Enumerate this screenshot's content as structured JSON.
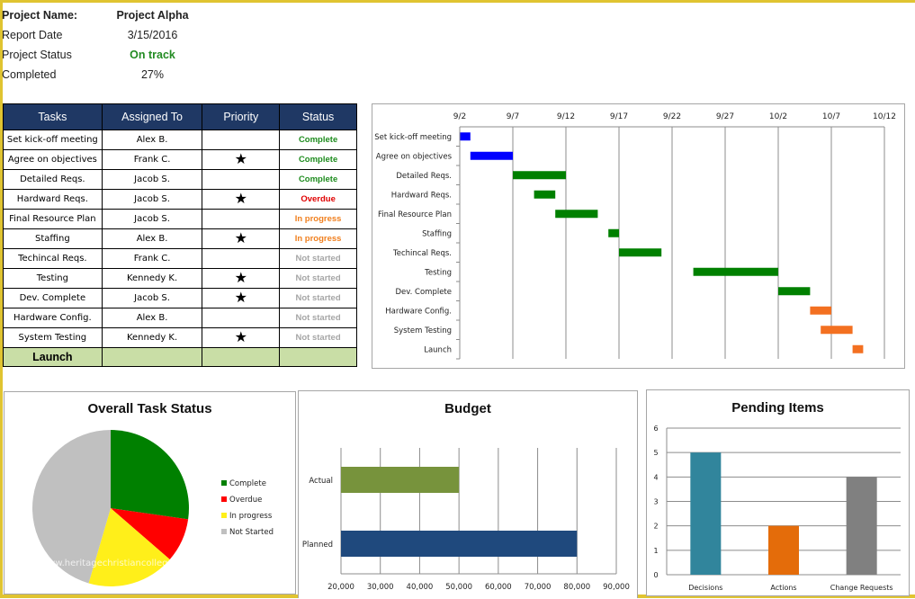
{
  "project": {
    "name_label": "Project Name:",
    "name": "Project Alpha",
    "date_label": "Report Date",
    "date": "3/15/2016",
    "status_label": "Project Status",
    "status": "On track",
    "status_color": "#228b22",
    "completed_label": "Completed",
    "completed": "27%"
  },
  "table": {
    "headers": [
      "Tasks",
      "Assigned To",
      "Priority",
      "Status"
    ],
    "rows": [
      {
        "task": "Set kick-off meeting",
        "assigned": "Alex B.",
        "priority": false,
        "status": "Complete"
      },
      {
        "task": "Agree on objectives",
        "assigned": "Frank C.",
        "priority": true,
        "status": "Complete"
      },
      {
        "task": "Detailed Reqs.",
        "assigned": "Jacob S.",
        "priority": false,
        "status": "Complete"
      },
      {
        "task": "Hardward Reqs.",
        "assigned": "Jacob S.",
        "priority": true,
        "status": "Overdue"
      },
      {
        "task": "Final Resource Plan",
        "assigned": "Jacob S.",
        "priority": false,
        "status": "In progress"
      },
      {
        "task": "Staffing",
        "assigned": "Alex B.",
        "priority": true,
        "status": "In progress"
      },
      {
        "task": "Techincal Reqs.",
        "assigned": "Frank C.",
        "priority": false,
        "status": "Not started"
      },
      {
        "task": "Testing",
        "assigned": "Kennedy K.",
        "priority": true,
        "status": "Not started"
      },
      {
        "task": "Dev. Complete",
        "assigned": "Jacob S.",
        "priority": true,
        "status": "Not started"
      },
      {
        "task": "Hardware Config.",
        "assigned": "Alex B.",
        "priority": false,
        "status": "Not started"
      },
      {
        "task": "System Testing",
        "assigned": "Kennedy K.",
        "priority": true,
        "status": "Not started"
      }
    ],
    "launch_label": "Launch",
    "priority_icon": "star-icon",
    "status_colors": {
      "Complete": "#1e8c1e",
      "Overdue": "#e00000",
      "In progress": "#f08020",
      "Not started": "#a6a6a6"
    }
  },
  "chart_data": [
    {
      "type": "gantt",
      "x_ticks": [
        "9/2",
        "9/7",
        "9/12",
        "9/17",
        "9/22",
        "9/27",
        "10/2",
        "10/7",
        "10/12"
      ],
      "tasks": [
        {
          "label": "Set kick-off meeting",
          "start": "9/2",
          "end": "9/3",
          "color": "#0000ff"
        },
        {
          "label": "Agree on objectives",
          "start": "9/3",
          "end": "9/7",
          "color": "#0000ff"
        },
        {
          "label": "Detailed Reqs.",
          "start": "9/7",
          "end": "9/12",
          "color": "#008000"
        },
        {
          "label": "Hardward Reqs.",
          "start": "9/9",
          "end": "9/11",
          "color": "#008000"
        },
        {
          "label": "Final Resource Plan",
          "start": "9/11",
          "end": "9/15",
          "color": "#008000"
        },
        {
          "label": "Staffing",
          "start": "9/16",
          "end": "9/17",
          "color": "#008000"
        },
        {
          "label": "Techincal Reqs.",
          "start": "9/17",
          "end": "9/21",
          "color": "#008000"
        },
        {
          "label": "Testing",
          "start": "9/24",
          "end": "10/2",
          "color": "#008000"
        },
        {
          "label": "Dev. Complete",
          "start": "10/2",
          "end": "10/5",
          "color": "#008000"
        },
        {
          "label": "Hardware Config.",
          "start": "10/5",
          "end": "10/7",
          "color": "#f37021"
        },
        {
          "label": "System Testing",
          "start": "10/6",
          "end": "10/9",
          "color": "#f37021"
        },
        {
          "label": "Launch",
          "start": "10/9",
          "end": "10/10",
          "color": "#f37021"
        }
      ],
      "grid": true
    },
    {
      "type": "pie",
      "title": "Overall Task Status",
      "slices": [
        {
          "name": "Complete",
          "value": 3,
          "color": "#008000"
        },
        {
          "name": "Overdue",
          "value": 1,
          "color": "#ff0000"
        },
        {
          "name": "In progress",
          "value": 2,
          "color": "#ffef1a"
        },
        {
          "name": "Not Started",
          "value": 5,
          "color": "#c0c0c0"
        }
      ],
      "legend": "right",
      "watermark": "www.heritagechristiancollege.com"
    },
    {
      "type": "bar",
      "orientation": "horizontal",
      "title": "Budget",
      "categories": [
        "Actual",
        "Planned"
      ],
      "values": [
        50000,
        80000
      ],
      "colors": [
        "#77933c",
        "#1f497d"
      ],
      "xlim": [
        20000,
        90000
      ],
      "x_ticks": [
        "20,000",
        "30,000",
        "40,000",
        "50,000",
        "60,000",
        "70,000",
        "80,000",
        "90,000"
      ],
      "grid": true
    },
    {
      "type": "bar",
      "title": "Pending Items",
      "categories": [
        "Decisions",
        "Actions",
        "Change Requests"
      ],
      "values": [
        5,
        2,
        4
      ],
      "colors": [
        "#31859c",
        "#e46c0a",
        "#808080"
      ],
      "ylim": [
        0,
        6
      ],
      "y_ticks": [
        "0",
        "1",
        "2",
        "3",
        "4",
        "5",
        "6"
      ],
      "grid": true
    }
  ]
}
